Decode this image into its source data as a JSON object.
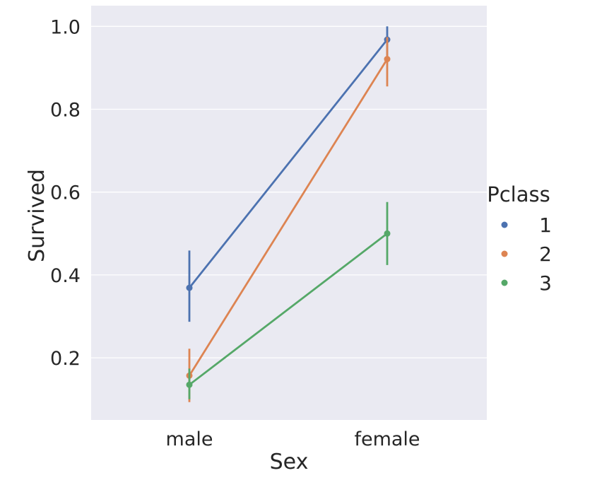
{
  "chart_data": {
    "type": "line",
    "xlabel": "Sex",
    "ylabel": "Survived",
    "categories": [
      "male",
      "female"
    ],
    "ylim": [
      0.05,
      1.05
    ],
    "yticks": [
      0.2,
      0.4,
      0.6,
      0.8,
      1.0
    ],
    "ytick_labels": [
      "0.2",
      "0.4",
      "0.6",
      "0.8",
      "1.0"
    ],
    "grid": true,
    "legend": {
      "title": "Pclass",
      "placement": "right"
    },
    "series": [
      {
        "name": "1",
        "color": "#4c72b0",
        "values": [
          0.369,
          0.968
        ],
        "ci_low": [
          0.287,
          0.926
        ],
        "ci_high": [
          0.459,
          1.0
        ]
      },
      {
        "name": "2",
        "color": "#dd8452",
        "values": [
          0.157,
          0.921
        ],
        "ci_low": [
          0.093,
          0.855
        ],
        "ci_high": [
          0.222,
          0.974
        ]
      },
      {
        "name": "3",
        "color": "#55a868",
        "values": [
          0.135,
          0.5
        ],
        "ci_low": [
          0.1,
          0.424
        ],
        "ci_high": [
          0.174,
          0.576
        ]
      }
    ]
  }
}
